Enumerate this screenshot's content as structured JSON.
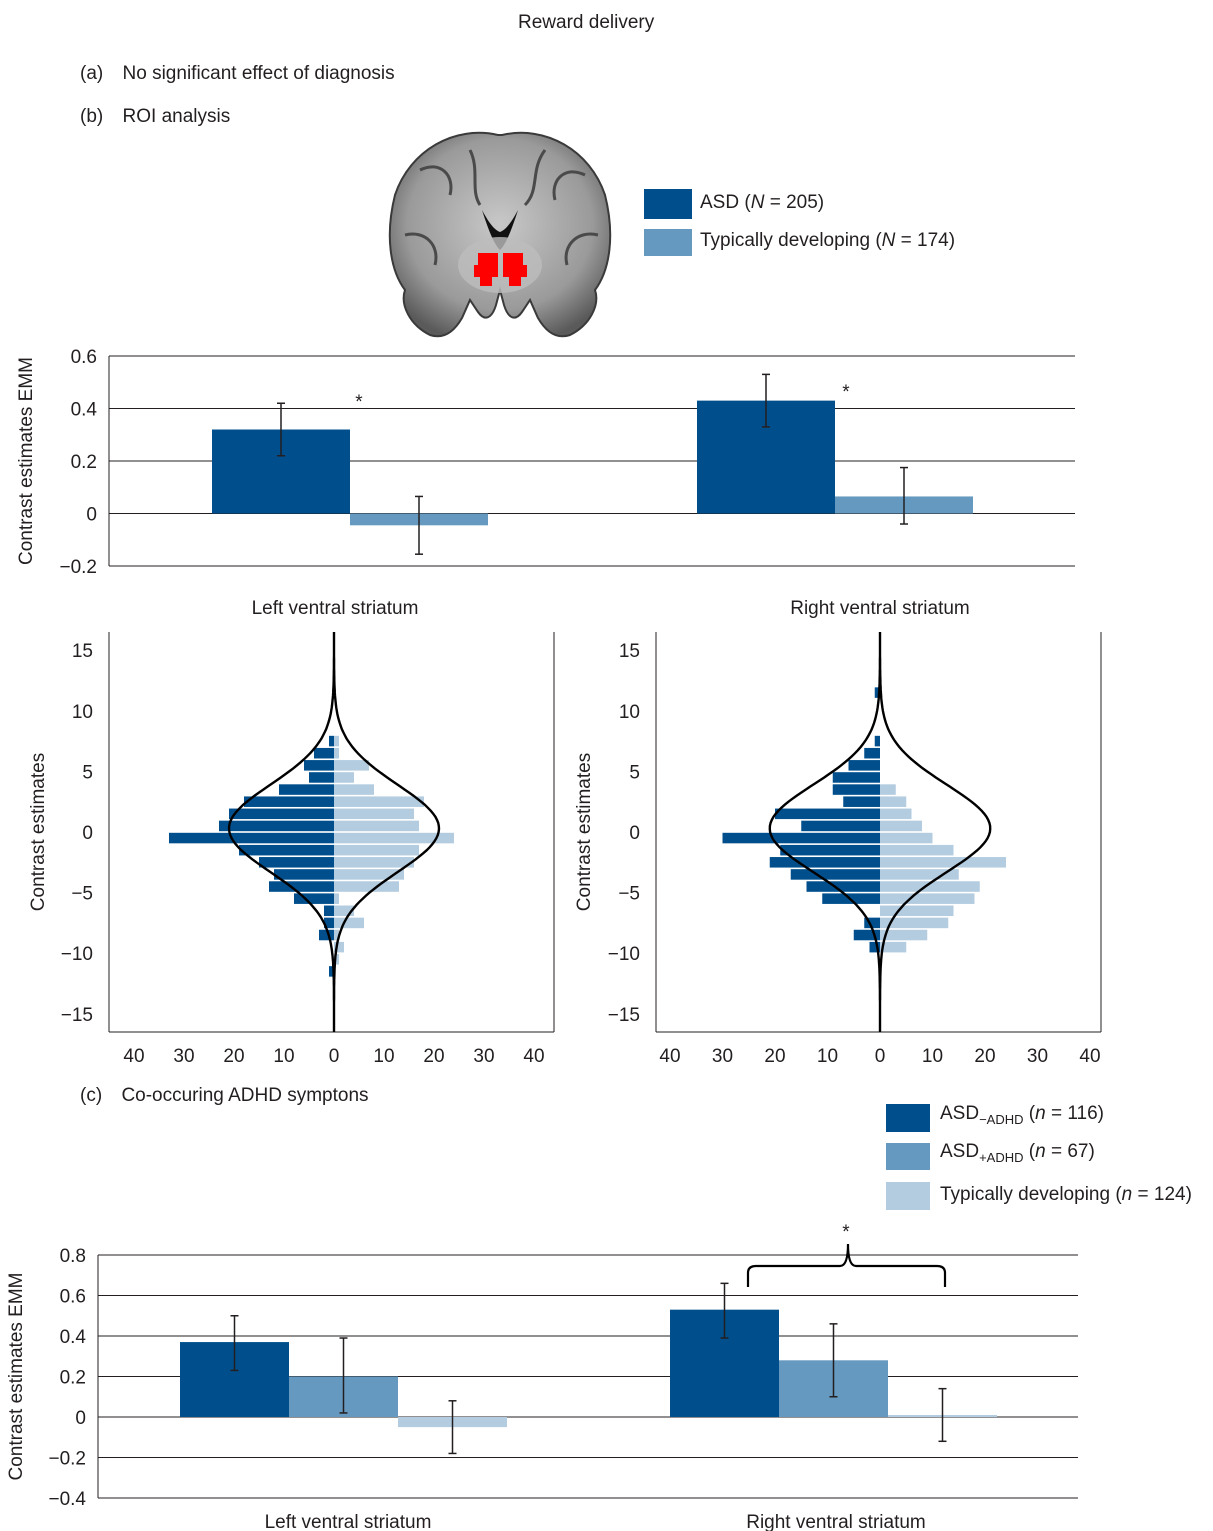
{
  "figure_title": "Reward delivery",
  "panel_a": {
    "letter": "(a)",
    "text": "No significant effect of diagnosis"
  },
  "panel_b": {
    "letter": "(b)",
    "text": "ROI  analysis"
  },
  "panel_c": {
    "letter": "(c)",
    "text": "Co-occuring ADHD symptons"
  },
  "colors": {
    "asd": "#004f8c",
    "td": "#6699bf",
    "td_light": "#b3cce0",
    "roi": "#ff0000"
  },
  "legend_b": [
    {
      "label": "ASD",
      "n_label": "N",
      "n": "205",
      "color": "#004f8c"
    },
    {
      "label": "Typically developing",
      "n_label": "N",
      "n": "174",
      "color": "#6699bf"
    }
  ],
  "legend_c": [
    {
      "label": "ASD",
      "sub": "−ADHD",
      "n_label": "n",
      "n": "116",
      "color": "#004f8c"
    },
    {
      "label": "ASD",
      "sub": "+ADHD",
      "n_label": "n",
      "n": "67",
      "color": "#6699bf"
    },
    {
      "label": "Typically developing ",
      "sub": "",
      "n_label": "n",
      "n": "124",
      "color": "#b3cce0"
    }
  ],
  "brain_icon": "coronal-brain-slice-with-ventral-striatum-roi",
  "chart_data": [
    {
      "type": "bar",
      "panel": "b",
      "ylabel": "Contrast estimates EMM",
      "categories": [
        "Left ventral striatum",
        "Right ventral striatum"
      ],
      "series": [
        {
          "name": "ASD",
          "values": [
            0.32,
            0.43
          ],
          "err_low": [
            0.22,
            0.33
          ],
          "err_high": [
            0.42,
            0.53
          ]
        },
        {
          "name": "Typically developing",
          "values": [
            -0.045,
            0.065
          ],
          "err_low": [
            -0.155,
            -0.04
          ],
          "err_high": [
            0.065,
            0.175
          ]
        }
      ],
      "ylim": [
        -0.2,
        0.6
      ],
      "yticks": [
        -0.2,
        0,
        0.2,
        0.4,
        0.6
      ],
      "ytick_labels": [
        "−0.2",
        "0",
        "0.2",
        "0.4",
        "0.6"
      ],
      "significance": [
        "*",
        "*"
      ],
      "grid": true
    },
    {
      "type": "histogram",
      "panel": "b-left",
      "ylabel": "Contrast estimates",
      "ylim": [
        -16.5,
        16.5
      ],
      "yticks": [
        -15,
        -10,
        -5,
        0,
        5,
        10,
        15
      ],
      "ytick_labels": [
        "−15",
        "−10",
        "−5",
        "0",
        "5",
        "10",
        "15"
      ],
      "xticks": [
        "40",
        "30",
        "20",
        "10",
        "0",
        "10",
        "20",
        "30",
        "40"
      ],
      "bins": [
        8.5,
        7.5,
        6.5,
        5.5,
        4.5,
        3.5,
        2.5,
        1.5,
        0.5,
        -0.5,
        -1.5,
        -2.5,
        -3.5,
        -4.5,
        -5.5,
        -6.5,
        -7.5,
        -8.5,
        -9.5,
        -10.5,
        -11.5
      ],
      "asd_counts": [
        0,
        1,
        4,
        6,
        5,
        11,
        18,
        21,
        23,
        33,
        19,
        15,
        12,
        13,
        8,
        2,
        2,
        3,
        0,
        0,
        1
      ],
      "td_counts": [
        0,
        1,
        1,
        7,
        4,
        8,
        18,
        16,
        17,
        24,
        17,
        16,
        14,
        13,
        1,
        4,
        6,
        1,
        2,
        1,
        0
      ]
    },
    {
      "type": "histogram",
      "panel": "b-right",
      "ylabel": "Contrast estimates",
      "ylim": [
        -16.5,
        16.5
      ],
      "yticks": [
        -15,
        -10,
        -5,
        0,
        5,
        10,
        15
      ],
      "ytick_labels": [
        "−15",
        "−10",
        "−5",
        "0",
        "5",
        "10",
        "15"
      ],
      "xticks": [
        "40",
        "30",
        "20",
        "10",
        "0",
        "10",
        "20",
        "30",
        "40"
      ],
      "bins": [
        11.5,
        8.5,
        7.5,
        6.5,
        5.5,
        4.5,
        3.5,
        2.5,
        1.5,
        0.5,
        -0.5,
        -1.5,
        -2.5,
        -3.5,
        -4.5,
        -5.5,
        -6.5,
        -7.5,
        -8.5,
        -9.5
      ],
      "asd_counts": [
        1,
        0,
        1,
        3,
        6,
        9,
        9,
        7,
        20,
        15,
        30,
        19,
        21,
        17,
        14,
        11,
        0,
        3,
        5,
        2
      ],
      "td_counts": [
        0,
        0,
        0,
        0,
        0,
        0,
        3,
        5,
        6,
        8,
        10,
        14,
        24,
        15,
        19,
        18,
        14,
        13,
        9,
        5
      ]
    },
    {
      "type": "bar",
      "panel": "c",
      "ylabel": "Contrast estimates EMM",
      "categories": [
        "Left ventral striatum",
        "Right ventral striatum"
      ],
      "series": [
        {
          "name": "ASD−ADHD",
          "values": [
            0.37,
            0.53
          ],
          "err_low": [
            0.23,
            0.39
          ],
          "err_high": [
            0.5,
            0.66
          ]
        },
        {
          "name": "ASD+ADHD",
          "values": [
            0.2,
            0.28
          ],
          "err_low": [
            0.02,
            0.1
          ],
          "err_high": [
            0.39,
            0.46
          ]
        },
        {
          "name": "Typically developing",
          "values": [
            -0.05,
            0.01
          ],
          "err_low": [
            -0.18,
            -0.12
          ],
          "err_high": [
            0.08,
            0.14
          ]
        }
      ],
      "ylim": [
        -0.4,
        0.8
      ],
      "yticks": [
        -0.4,
        -0.2,
        0,
        0.2,
        0.4,
        0.6,
        0.8
      ],
      "ytick_labels": [
        "−0.4",
        "−0.2",
        "0",
        "0.2",
        "0.4",
        "0.6",
        "0.8"
      ],
      "significance": [
        "",
        "*"
      ],
      "grid": true
    }
  ]
}
